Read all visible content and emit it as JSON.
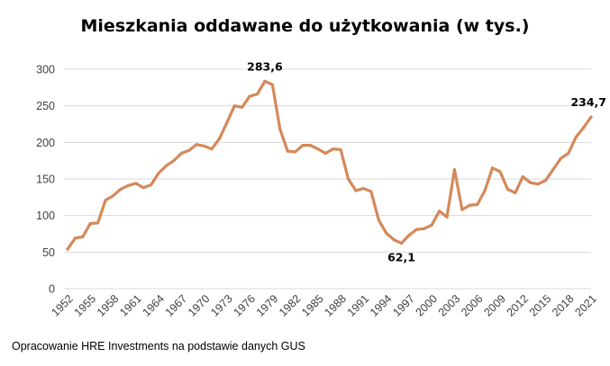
{
  "title": "Mieszkania oddawane do użytkowania (w tys.)",
  "source_note": "Opracowanie HRE Investments na podstawie danych GUS",
  "colors": {
    "series_line": "#D4895A",
    "gridline": "#D9D9D9",
    "axis_text": "#404040"
  },
  "chart_data": {
    "type": "line",
    "title": "Mieszkania oddawane do użytkowania (w tys.)",
    "xlabel": "",
    "ylabel": "",
    "ylim": [
      0,
      300
    ],
    "yticks": [
      0,
      50,
      100,
      150,
      200,
      250,
      300
    ],
    "xlim": [
      1952,
      2021
    ],
    "xtick_labels": [
      "1952",
      "1955",
      "1958",
      "1961",
      "1964",
      "1967",
      "1970",
      "1973",
      "1976",
      "1979",
      "1982",
      "1985",
      "1988",
      "1991",
      "1994",
      "1997",
      "2000",
      "2003",
      "2006",
      "2009",
      "2012",
      "2015",
      "2018",
      "2021"
    ],
    "grid": "horizontal",
    "legend": "none",
    "series": [
      {
        "x": [
          1952,
          1953,
          1954,
          1955,
          1956,
          1957,
          1958,
          1959,
          1960,
          1961,
          1962,
          1963,
          1964,
          1965,
          1966,
          1967,
          1968,
          1969,
          1970,
          1971,
          1972,
          1973,
          1974,
          1975,
          1976,
          1977,
          1978,
          1979,
          1980,
          1981,
          1982,
          1983,
          1984,
          1985,
          1986,
          1987,
          1988,
          1989,
          1990,
          1991,
          1992,
          1993,
          1994,
          1995,
          1996,
          1997,
          1998,
          1999,
          2000,
          2001,
          2002,
          2003,
          2004,
          2005,
          2006,
          2007,
          2008,
          2009,
          2010,
          2011,
          2012,
          2013,
          2014,
          2015,
          2016,
          2017,
          2018,
          2019,
          2020,
          2021
        ],
        "values": [
          54,
          69,
          71,
          89,
          90,
          121,
          127,
          136,
          141,
          144,
          138,
          142,
          158,
          168,
          175,
          185,
          189,
          197,
          195,
          191,
          205,
          227,
          250,
          248,
          263,
          266,
          283.6,
          279,
          218,
          188,
          187,
          196,
          196,
          191,
          185,
          191,
          190,
          150,
          134,
          137,
          133,
          94,
          76,
          67,
          62.1,
          73,
          81,
          82,
          87,
          106,
          98,
          162.7,
          108,
          114,
          115,
          134,
          165,
          160,
          136,
          131,
          153,
          145,
          143,
          148,
          163,
          178,
          185,
          207,
          220,
          234.7
        ]
      }
    ],
    "annotations": [
      {
        "x": 1978,
        "y": 283.6,
        "text": "283,6",
        "position": "above"
      },
      {
        "x": 1996,
        "y": 62.1,
        "text": "62,1",
        "position": "below"
      },
      {
        "x": 2021,
        "y": 234.7,
        "text": "234,7",
        "position": "above"
      }
    ]
  }
}
